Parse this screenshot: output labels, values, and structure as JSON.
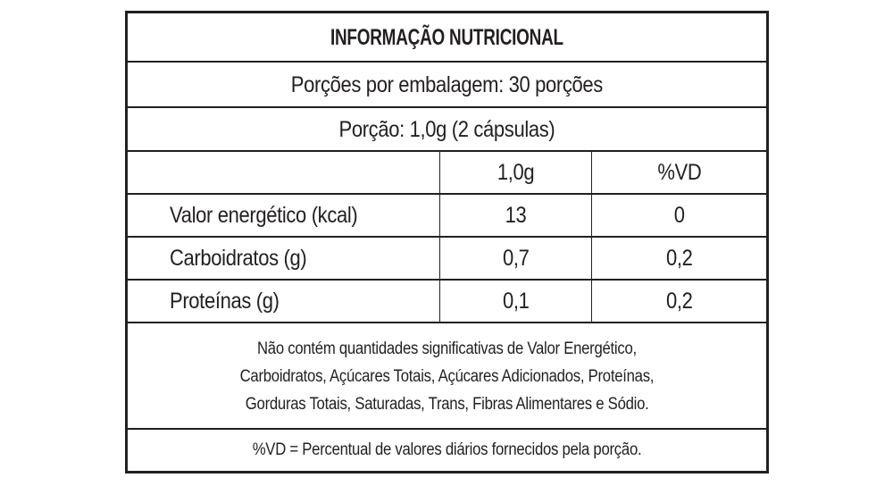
{
  "label": {
    "title": "INFORMAÇÃO NUTRICIONAL",
    "servings_per_package": "Porções por embalagem: 30 porções",
    "serving_size": "Porção: 1,0g (2 cápsulas)",
    "table": {
      "columns": [
        "",
        "1,0g",
        "%VD"
      ],
      "rows": [
        {
          "nutrient": "Valor energético (kcal)",
          "amount": "13",
          "dv": "0"
        },
        {
          "nutrient": "Carboidratos (g)",
          "amount": "0,7",
          "dv": "0,2"
        },
        {
          "nutrient": "Proteínas (g)",
          "amount": "0,1",
          "dv": "0,2"
        }
      ]
    },
    "note_lines": [
      "Não contém quantidades significativas de Valor Energético,",
      "Carboidratos, Açúcares Totais, Açúcares Adicionados, Proteínas,",
      "Gorduras Totais, Saturadas, Trans, Fibras Alimentares e Sódio."
    ],
    "footer": "%VD = Percentual de valores diários fornecidos pela porção.",
    "colors": {
      "ink": "#231f20",
      "background": "#ffffff"
    }
  }
}
